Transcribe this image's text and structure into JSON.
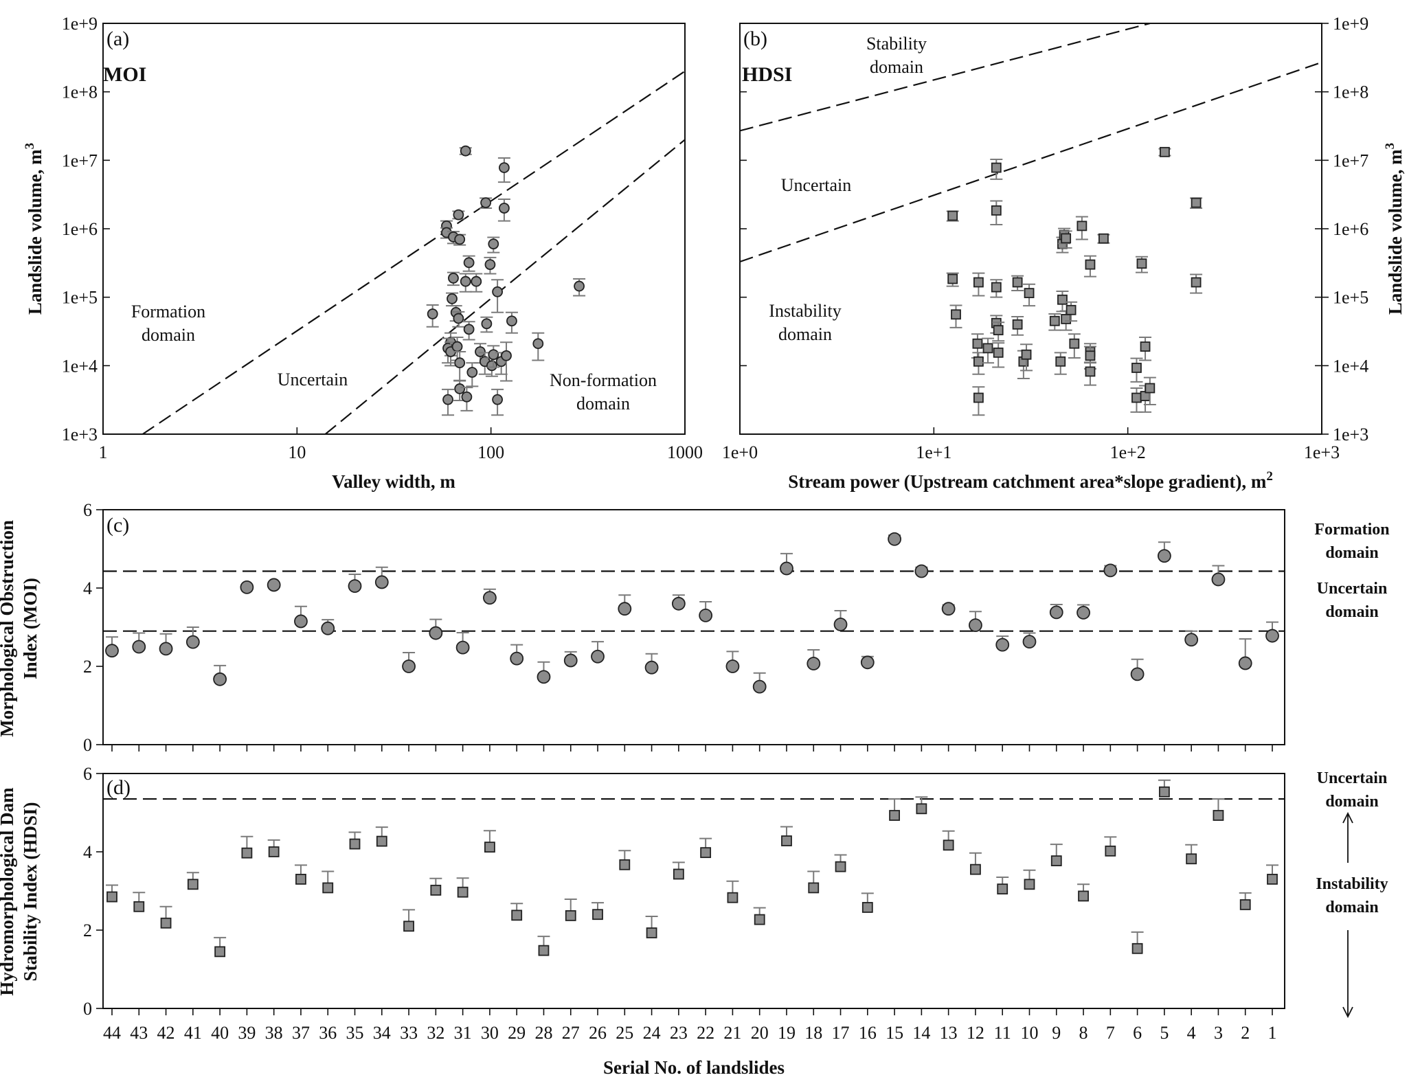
{
  "chart_data": [
    {
      "panel": "(a)",
      "type": "scatter",
      "index_label": "MOI",
      "xlabel": "Valley width, m",
      "ylabel": "Landslide volume, m",
      "ylabel_sup": "3",
      "x_scale": "log",
      "y_scale": "log",
      "xlim": [
        1,
        1000
      ],
      "ylim": [
        1000,
        1000000000
      ],
      "x_ticks": [
        1,
        10,
        100,
        1000
      ],
      "x_tick_labels": [
        "1",
        "10",
        "100",
        "1000"
      ],
      "y_ticks": [
        1000,
        10000,
        100000,
        1000000,
        10000000,
        100000000,
        1000000000
      ],
      "y_tick_labels": [
        "1e+3",
        "1e+4",
        "1e+5",
        "1e+6",
        "1e+7",
        "1e+8",
        "1e+9"
      ],
      "regions": [
        "Formation domain",
        "Uncertain",
        "Non-formation domain"
      ],
      "boundaries": [
        {
          "x": [
            1.6,
            1000
          ],
          "y": [
            1000,
            200000000
          ]
        },
        {
          "x": [
            14,
            1000
          ],
          "y": [
            1000,
            20000000
          ]
        }
      ],
      "points": [
        {
          "x": 50,
          "y": 57000,
          "err": 20000
        },
        {
          "x": 59,
          "y": 1100000,
          "err": 200000
        },
        {
          "x": 59,
          "y": 880000,
          "err": 150000
        },
        {
          "x": 64,
          "y": 760000,
          "err": 150000
        },
        {
          "x": 64,
          "y": 190000,
          "err": 40000
        },
        {
          "x": 63,
          "y": 95000,
          "err": 20000
        },
        {
          "x": 66,
          "y": 60000,
          "err": 15000
        },
        {
          "x": 68,
          "y": 49000,
          "err": 12000
        },
        {
          "x": 62,
          "y": 22000,
          "err": 8000
        },
        {
          "x": 60,
          "y": 18000,
          "err": 7000
        },
        {
          "x": 62,
          "y": 16000,
          "err": 6000
        },
        {
          "x": 67,
          "y": 19000,
          "err": 7000
        },
        {
          "x": 69,
          "y": 11000,
          "err": 5000
        },
        {
          "x": 60,
          "y": 3200,
          "err": 1300
        },
        {
          "x": 69,
          "y": 4600,
          "err": 1500
        },
        {
          "x": 75,
          "y": 3500,
          "err": 1300
        },
        {
          "x": 68,
          "y": 1600000,
          "err": 200000
        },
        {
          "x": 69,
          "y": 700000,
          "err": 120000
        },
        {
          "x": 74,
          "y": 13700000,
          "err": 1500000
        },
        {
          "x": 74,
          "y": 170000,
          "err": 50000
        },
        {
          "x": 77,
          "y": 320000,
          "err": 80000
        },
        {
          "x": 84,
          "y": 170000,
          "err": 50000
        },
        {
          "x": 77,
          "y": 34000,
          "err": 10000
        },
        {
          "x": 80,
          "y": 8000,
          "err": 3000
        },
        {
          "x": 88,
          "y": 16000,
          "err": 5000
        },
        {
          "x": 93,
          "y": 11500,
          "err": 4000
        },
        {
          "x": 95,
          "y": 41000,
          "err": 10000
        },
        {
          "x": 94,
          "y": 2400000,
          "err": 400000
        },
        {
          "x": 99,
          "y": 300000,
          "err": 80000
        },
        {
          "x": 103,
          "y": 600000,
          "err": 150000
        },
        {
          "x": 101,
          "y": 10000,
          "err": 3000
        },
        {
          "x": 103,
          "y": 14500,
          "err": 5000
        },
        {
          "x": 108,
          "y": 120000,
          "err": 60000
        },
        {
          "x": 108,
          "y": 3200,
          "err": 1300
        },
        {
          "x": 113,
          "y": 11500,
          "err": 4000
        },
        {
          "x": 117,
          "y": 7800000,
          "err": 3000000
        },
        {
          "x": 117,
          "y": 2000000,
          "err": 700000
        },
        {
          "x": 120,
          "y": 14000,
          "err": 8000
        },
        {
          "x": 128,
          "y": 45000,
          "err": 15000
        },
        {
          "x": 175,
          "y": 21000,
          "err": 9000
        },
        {
          "x": 285,
          "y": 145000,
          "err": 40000
        }
      ]
    },
    {
      "panel": "(b)",
      "type": "scatter",
      "index_label": "HDSI",
      "xlabel": "Stream power (Upstream catchment area*slope gradient), m",
      "xlabel_sup": "2",
      "ylabel": "Landslide volume, m",
      "ylabel_sup": "3",
      "x_scale": "log",
      "y_scale": "log",
      "xlim": [
        1,
        1000
      ],
      "ylim": [
        1000,
        1000000000
      ],
      "x_ticks": [
        1,
        10,
        100,
        1000
      ],
      "x_tick_labels": [
        "1e+0",
        "1e+1",
        "1e+2",
        "1e+3"
      ],
      "y_ticks": [
        1000,
        10000,
        100000,
        1000000,
        10000000,
        100000000,
        1000000000
      ],
      "y_tick_labels": [
        "1e+3",
        "1e+4",
        "1e+5",
        "1e+6",
        "1e+7",
        "1e+8",
        "1e+9"
      ],
      "regions": [
        "Stability domain",
        "Uncertain",
        "Instability domain"
      ],
      "boundaries": [
        {
          "x": [
            1,
            130
          ],
          "y": [
            27000000,
            1000000000
          ]
        },
        {
          "x": [
            1,
            1000
          ],
          "y": [
            330000,
            270000000
          ]
        }
      ],
      "points": [
        {
          "x": 12.5,
          "y": 1550000,
          "err": 250000
        },
        {
          "x": 12.5,
          "y": 185000,
          "err": 40000
        },
        {
          "x": 13.0,
          "y": 56000,
          "err": 20000
        },
        {
          "x": 17.0,
          "y": 165000,
          "err": 60000
        },
        {
          "x": 16.8,
          "y": 21000,
          "err": 8000
        },
        {
          "x": 17.0,
          "y": 11500,
          "err": 4000
        },
        {
          "x": 17.0,
          "y": 3400,
          "err": 1500
        },
        {
          "x": 19.0,
          "y": 18000,
          "err": 7000
        },
        {
          "x": 21.0,
          "y": 7800000,
          "err": 2500000
        },
        {
          "x": 21.0,
          "y": 1850000,
          "err": 700000
        },
        {
          "x": 21.0,
          "y": 140000,
          "err": 40000
        },
        {
          "x": 21.0,
          "y": 42000,
          "err": 12000
        },
        {
          "x": 21.5,
          "y": 33000,
          "err": 10000
        },
        {
          "x": 21.5,
          "y": 15500,
          "err": 6000
        },
        {
          "x": 27.0,
          "y": 165000,
          "err": 40000
        },
        {
          "x": 27.0,
          "y": 40000,
          "err": 12000
        },
        {
          "x": 29.0,
          "y": 11500,
          "err": 5000
        },
        {
          "x": 30.0,
          "y": 14500,
          "err": 6000
        },
        {
          "x": 31.0,
          "y": 115000,
          "err": 40000
        },
        {
          "x": 42.0,
          "y": 45000,
          "err": 12000
        },
        {
          "x": 45.0,
          "y": 11500,
          "err": 4000
        },
        {
          "x": 46.0,
          "y": 600000,
          "err": 150000
        },
        {
          "x": 46.0,
          "y": 92000,
          "err": 30000
        },
        {
          "x": 47.0,
          "y": 810000,
          "err": 200000
        },
        {
          "x": 48.0,
          "y": 725000,
          "err": 200000
        },
        {
          "x": 48.0,
          "y": 48000,
          "err": 15000
        },
        {
          "x": 51.0,
          "y": 65000,
          "err": 20000
        },
        {
          "x": 53.0,
          "y": 21000,
          "err": 8000
        },
        {
          "x": 58.0,
          "y": 1100000,
          "err": 400000
        },
        {
          "x": 64.0,
          "y": 300000,
          "err": 100000
        },
        {
          "x": 64.0,
          "y": 16000,
          "err": 5000
        },
        {
          "x": 64.0,
          "y": 14000,
          "err": 5000
        },
        {
          "x": 64.0,
          "y": 8200,
          "err": 3000
        },
        {
          "x": 75.0,
          "y": 720000,
          "err": 100000
        },
        {
          "x": 111.0,
          "y": 9300,
          "err": 3500
        },
        {
          "x": 111.0,
          "y": 3400,
          "err": 1300
        },
        {
          "x": 118.0,
          "y": 310000,
          "err": 80000
        },
        {
          "x": 123.0,
          "y": 19000,
          "err": 7000
        },
        {
          "x": 123.0,
          "y": 3600,
          "err": 1500
        },
        {
          "x": 130.0,
          "y": 4700,
          "err": 2000
        },
        {
          "x": 155.0,
          "y": 13200000,
          "err": 1500000
        },
        {
          "x": 225.0,
          "y": 2400000,
          "err": 400000
        },
        {
          "x": 225.0,
          "y": 165000,
          "err": 50000
        }
      ]
    },
    {
      "panel": "(c)",
      "type": "scatter",
      "ylabel": "Morphological Obstruction Index (MOI)",
      "ylabel_lines": [
        "Morphological Obstruction",
        "Index (MOI)"
      ],
      "ylim": [
        0,
        6
      ],
      "y_ticks": [
        0,
        2,
        4,
        6
      ],
      "thresholds": [
        4.43,
        2.9
      ],
      "domain_labels": [
        [
          "Formation",
          "domain"
        ],
        [
          "Uncertain",
          "domain"
        ]
      ],
      "categories": [
        "44",
        "43",
        "42",
        "41",
        "40",
        "39",
        "38",
        "37",
        "36",
        "35",
        "34",
        "33",
        "32",
        "31",
        "30",
        "29",
        "28",
        "27",
        "26",
        "25",
        "24",
        "23",
        "22",
        "21",
        "20",
        "19",
        "18",
        "17",
        "16",
        "15",
        "14",
        "13",
        "12",
        "11",
        "10",
        "9",
        "8",
        "7",
        "6",
        "5",
        "4",
        "3",
        "2",
        "1"
      ],
      "values": [
        2.4,
        2.5,
        2.45,
        2.62,
        1.67,
        4.02,
        4.08,
        3.15,
        2.97,
        4.05,
        4.15,
        2.0,
        2.85,
        2.48,
        3.75,
        2.2,
        1.73,
        2.15,
        2.25,
        3.47,
        1.97,
        3.6,
        3.3,
        2.0,
        1.48,
        4.5,
        2.07,
        3.07,
        2.1,
        5.25,
        4.43,
        3.47,
        3.05,
        2.55,
        2.63,
        3.38,
        3.37,
        4.45,
        1.8,
        4.82,
        2.68,
        4.22,
        2.08,
        2.78
      ],
      "errors": [
        0.35,
        0.35,
        0.38,
        0.38,
        0.35,
        0.0,
        0.0,
        0.38,
        0.22,
        0.3,
        0.38,
        0.35,
        0.35,
        0.38,
        0.22,
        0.35,
        0.38,
        0.22,
        0.38,
        0.35,
        0.35,
        0.22,
        0.35,
        0.38,
        0.35,
        0.38,
        0.35,
        0.35,
        0.15,
        0.1,
        0.1,
        0.1,
        0.35,
        0.22,
        0.22,
        0.2,
        0.2,
        0.12,
        0.38,
        0.35,
        0.22,
        0.35,
        0.62,
        0.35
      ]
    },
    {
      "panel": "(d)",
      "type": "scatter",
      "ylabel": "Hydromorphological Dam Stability Index (HDSI)",
      "ylabel_lines": [
        "Hydromorphological Dam",
        "Stability Index (HDSI)"
      ],
      "xlabel": "Serial No. of landslides",
      "ylim": [
        0,
        6
      ],
      "y_ticks": [
        0,
        2,
        4,
        6
      ],
      "thresholds": [
        5.35
      ],
      "domain_labels": [
        [
          "Uncertain",
          "domain"
        ],
        [
          "Instability",
          "domain"
        ]
      ],
      "categories": [
        "44",
        "43",
        "42",
        "41",
        "40",
        "39",
        "38",
        "37",
        "36",
        "35",
        "34",
        "33",
        "32",
        "31",
        "30",
        "29",
        "28",
        "27",
        "26",
        "25",
        "24",
        "23",
        "22",
        "21",
        "20",
        "19",
        "18",
        "17",
        "16",
        "15",
        "14",
        "13",
        "12",
        "11",
        "10",
        "9",
        "8",
        "7",
        "6",
        "5",
        "4",
        "3",
        "2",
        "1"
      ],
      "values": [
        2.85,
        2.6,
        2.18,
        3.17,
        1.45,
        3.97,
        4.0,
        3.3,
        3.08,
        4.2,
        4.27,
        2.1,
        3.02,
        2.97,
        4.12,
        2.38,
        1.48,
        2.37,
        2.4,
        3.67,
        1.93,
        3.43,
        3.98,
        2.83,
        2.27,
        4.28,
        3.08,
        3.62,
        2.58,
        4.93,
        5.1,
        4.17,
        3.55,
        3.05,
        3.17,
        3.77,
        2.87,
        4.02,
        1.53,
        5.53,
        3.82,
        4.93,
        2.65,
        3.3
      ]
    }
  ]
}
